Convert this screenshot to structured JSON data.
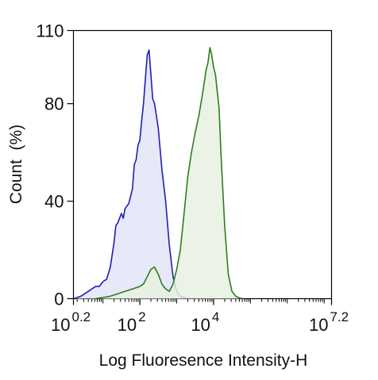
{
  "chart_data": {
    "type": "area",
    "title": "",
    "xlabel": "Log Fluoresence Intensity-H",
    "ylabel": "Count  (%)",
    "x_scale": "log10",
    "xlim": [
      0.2,
      7.2
    ],
    "ylim": [
      0,
      110
    ],
    "grid": false,
    "legend": "none",
    "x_ticks": [
      {
        "base": "10",
        "exp": "0.2",
        "log_value": 0.2
      },
      {
        "base": "10",
        "exp": "2",
        "log_value": 2
      },
      {
        "base": "10",
        "exp": "4",
        "log_value": 4
      },
      {
        "base": "10",
        "exp": "7.2",
        "log_value": 7.2
      }
    ],
    "y_ticks": [
      0,
      40,
      80,
      110
    ],
    "series": [
      {
        "color": "#1f1fb4",
        "fill": "#e3e4f7",
        "x": [
          0.2,
          0.4,
          0.6,
          0.8,
          0.9,
          1.0,
          1.1,
          1.2,
          1.3,
          1.35,
          1.4,
          1.5,
          1.55,
          1.6,
          1.7,
          1.8,
          1.85,
          1.9,
          1.95,
          2.0,
          2.05,
          2.1,
          2.15,
          2.2,
          2.25,
          2.3,
          2.35,
          2.4,
          2.5,
          2.6,
          2.7,
          2.8,
          2.9,
          3.0,
          3.1,
          3.2,
          3.3
        ],
        "y": [
          0,
          1,
          3,
          5,
          5,
          7,
          8,
          13,
          23,
          30,
          31,
          35,
          33,
          37,
          39,
          45,
          55,
          57,
          63,
          65,
          73,
          80,
          90,
          100,
          102,
          92,
          82,
          80,
          70,
          53,
          40,
          22,
          9,
          3,
          1,
          0.5,
          0
        ]
      },
      {
        "color": "#2e7d1e",
        "fill": "#e7f1e3",
        "x": [
          0.8,
          1.0,
          1.2,
          1.4,
          1.6,
          1.8,
          2.0,
          2.1,
          2.2,
          2.3,
          2.4,
          2.5,
          2.6,
          2.7,
          2.8,
          2.9,
          3.0,
          3.1,
          3.2,
          3.3,
          3.4,
          3.5,
          3.6,
          3.7,
          3.8,
          3.85,
          3.9,
          3.95,
          4.0,
          4.05,
          4.1,
          4.15,
          4.2,
          4.3,
          4.4,
          4.5,
          4.6,
          4.7,
          4.8
        ],
        "y": [
          0,
          0.5,
          1,
          2,
          3,
          4,
          5,
          6,
          9,
          12,
          13,
          10,
          6,
          4,
          3,
          6,
          12,
          20,
          35,
          50,
          60,
          68,
          75,
          84,
          94,
          97,
          103,
          100,
          95,
          92,
          85,
          78,
          60,
          30,
          10,
          3,
          1,
          0.3,
          0
        ]
      }
    ]
  }
}
